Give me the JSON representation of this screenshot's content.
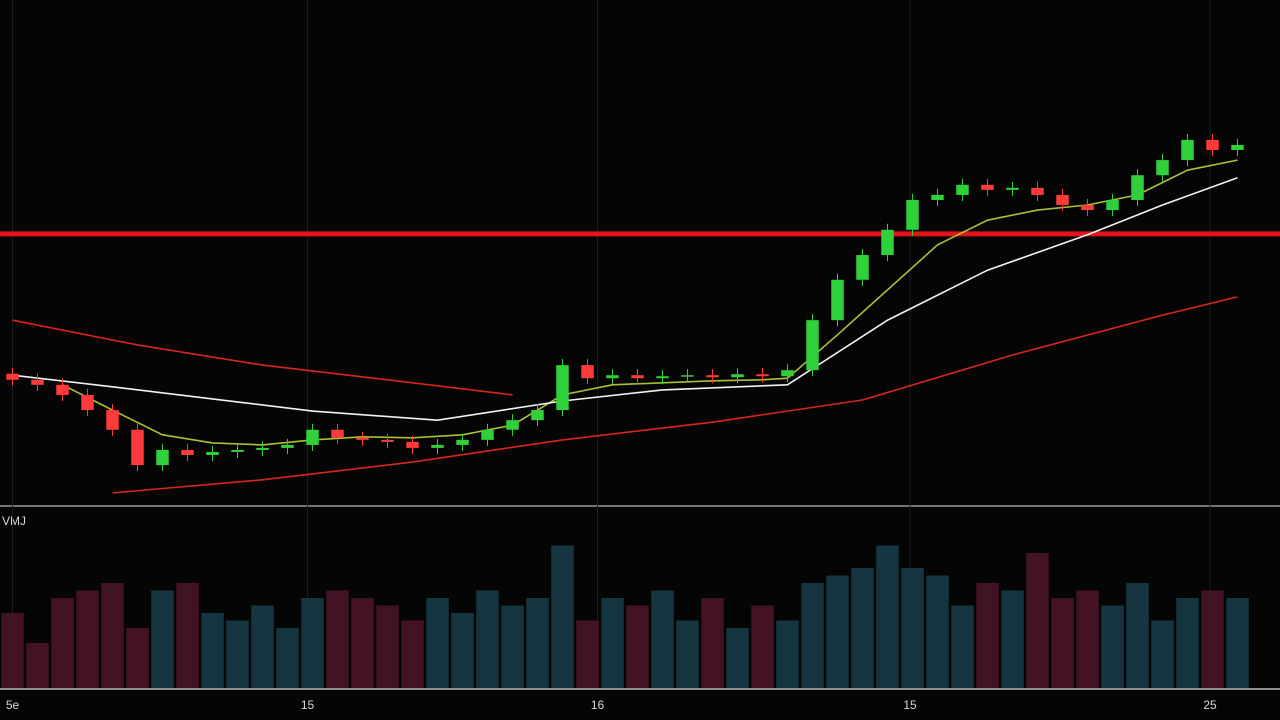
{
  "chart_data": {
    "type": "candlestick",
    "up_color": "#2fd03a",
    "down_color": "#ff3a3a",
    "xlim": [
      -0.5,
      50.7
    ],
    "xticks": [
      {
        "value": 0,
        "label": "5e"
      },
      {
        "value": 11.8,
        "label": "15"
      },
      {
        "value": 23.4,
        "label": "16"
      },
      {
        "value": 35.9,
        "label": "15"
      },
      {
        "value": 47.9,
        "label": "25"
      }
    ],
    "ylim": [
      0,
      100
    ],
    "open": [
      26.0,
      24.8,
      23.8,
      21.8,
      18.8,
      14.9,
      7.9,
      10.9,
      9.9,
      10.5,
      10.9,
      11.3,
      11.9,
      14.9,
      13.3,
      12.9,
      12.5,
      11.3,
      11.9,
      12.9,
      14.9,
      16.8,
      18.8,
      27.7,
      25.1,
      25.7,
      25.1,
      25.5,
      25.7,
      25.3,
      25.9,
      25.5,
      26.7,
      36.6,
      44.6,
      49.5,
      54.5,
      60.4,
      61.4,
      63.4,
      62.4,
      62.8,
      61.4,
      59.4,
      58.4,
      60.4,
      65.3,
      68.3,
      72.3,
      70.3
    ],
    "high": [
      27.2,
      26.0,
      25.0,
      23.0,
      20.0,
      16.1,
      12.1,
      12.1,
      11.7,
      12.1,
      12.5,
      13.1,
      16.1,
      16.1,
      14.5,
      14.1,
      13.7,
      13.1,
      14.1,
      16.1,
      18.0,
      20.0,
      28.9,
      28.9,
      26.9,
      26.9,
      26.7,
      26.9,
      26.9,
      27.1,
      27.1,
      27.9,
      37.8,
      45.8,
      50.7,
      55.7,
      61.6,
      62.6,
      64.6,
      64.6,
      64.0,
      64.0,
      62.6,
      60.6,
      61.6,
      66.5,
      69.5,
      73.5,
      73.5,
      72.5
    ],
    "low": [
      23.6,
      22.6,
      20.6,
      17.6,
      13.7,
      6.7,
      6.7,
      8.7,
      8.7,
      9.3,
      9.7,
      10.1,
      10.7,
      12.1,
      11.7,
      11.3,
      10.1,
      10.1,
      10.7,
      11.7,
      13.7,
      15.6,
      17.6,
      23.9,
      23.9,
      23.9,
      23.9,
      24.3,
      24.1,
      24.1,
      24.3,
      24.3,
      25.5,
      35.4,
      43.4,
      48.3,
      53.3,
      59.2,
      60.2,
      61.2,
      61.2,
      60.2,
      58.2,
      57.2,
      57.2,
      59.2,
      64.1,
      67.1,
      69.1,
      69.1
    ],
    "close": [
      24.8,
      23.8,
      21.8,
      18.8,
      14.9,
      7.9,
      10.9,
      9.9,
      10.5,
      10.9,
      11.3,
      11.9,
      14.9,
      13.3,
      12.9,
      12.5,
      11.3,
      11.9,
      12.9,
      14.9,
      16.8,
      18.8,
      27.7,
      25.1,
      25.7,
      25.1,
      25.5,
      25.7,
      25.3,
      25.9,
      25.5,
      26.7,
      36.6,
      44.6,
      49.5,
      54.5,
      60.4,
      61.4,
      63.4,
      62.4,
      62.8,
      61.4,
      59.4,
      58.4,
      60.4,
      65.3,
      68.3,
      72.3,
      70.3,
      71.3
    ],
    "level": 53.7,
    "level_color": "#e0141a",
    "series": [
      {
        "color": "#a8c234",
        "x": [
          2,
          4,
          6,
          8,
          10,
          12,
          14,
          16,
          18,
          20,
          22,
          24,
          26,
          28,
          30,
          31,
          33,
          35,
          37,
          39,
          41,
          43,
          45,
          47,
          49
        ],
        "values": [
          23.8,
          18.8,
          13.9,
          12.3,
          11.9,
          12.9,
          13.5,
          13.3,
          13.9,
          15.8,
          21.8,
          23.8,
          24.2,
          24.6,
          24.8,
          25.1,
          33.7,
          42.6,
          51.5,
          56.4,
          58.4,
          59.4,
          61.4,
          66.3,
          68.3
        ]
      },
      {
        "color": "#f2f2f2",
        "x": [
          0,
          4,
          8,
          12,
          17,
          22,
          26,
          31,
          35,
          39,
          43,
          46,
          49
        ],
        "values": [
          25.7,
          23.4,
          21.0,
          18.6,
          16.8,
          20.6,
          22.8,
          23.8,
          36.6,
          46.5,
          53.5,
          59.4,
          64.8
        ]
      },
      {
        "color": "#d8261e",
        "x": [
          0,
          5,
          10,
          15,
          20
        ],
        "values": [
          36.6,
          31.7,
          27.7,
          24.8,
          21.8
        ]
      },
      {
        "color": "#d8261e",
        "x": [
          4,
          10,
          16,
          22,
          28,
          34,
          40,
          46,
          49
        ],
        "values": [
          2.4,
          5.0,
          8.5,
          12.9,
          16.4,
          20.8,
          29.7,
          37.6,
          41.2
        ]
      }
    ],
    "volume": {
      "label": "VMJ",
      "ylim": [
        0,
        120
      ],
      "up_color": "#173c48",
      "down_color": "#4a1428",
      "values": [
        50,
        30,
        60,
        65,
        70,
        40,
        65,
        70,
        50,
        45,
        55,
        40,
        60,
        65,
        60,
        55,
        45,
        60,
        50,
        65,
        55,
        60,
        95,
        45,
        60,
        55,
        65,
        45,
        60,
        40,
        55,
        45,
        70,
        75,
        80,
        95,
        80,
        75,
        55,
        70,
        65,
        90,
        60,
        65,
        55,
        70,
        45,
        60,
        65,
        60
      ]
    }
  }
}
